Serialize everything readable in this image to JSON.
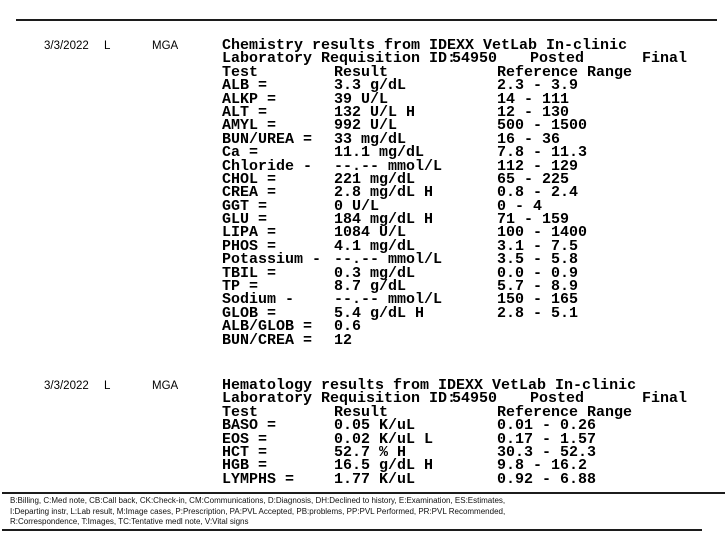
{
  "sections": [
    {
      "date": "3/3/2022",
      "entry_type": "L",
      "provider": "MGA",
      "title": "Chemistry results from IDEXX VetLab In-clinic",
      "requisition_label": "Laboratory Requisition ID:",
      "requisition_id": "54950",
      "status": "Posted",
      "finality": "Final",
      "columns": {
        "test": "Test",
        "result": "Result",
        "range": "Reference Range"
      },
      "rows": [
        {
          "test": "ALB =",
          "result": "3.3 g/dL",
          "range": "2.3 - 3.9"
        },
        {
          "test": "ALKP =",
          "result": "39 U/L",
          "range": "14 - 111"
        },
        {
          "test": "ALT =",
          "result": "132 U/L H",
          "range": "12 - 130"
        },
        {
          "test": "AMYL =",
          "result": "992 U/L",
          "range": "500 - 1500"
        },
        {
          "test": "BUN/UREA =",
          "result": "33 mg/dL",
          "range": "16 - 36"
        },
        {
          "test": "Ca =",
          "result": "11.1 mg/dL",
          "range": "7.8 - 11.3"
        },
        {
          "test": "Chloride -",
          "result": "--.-- mmol/L",
          "range": "112 - 129"
        },
        {
          "test": "CHOL =",
          "result": "221 mg/dL",
          "range": "65 - 225"
        },
        {
          "test": "CREA =",
          "result": "2.8 mg/dL H",
          "range": "0.8 - 2.4"
        },
        {
          "test": "GGT =",
          "result": "0 U/L",
          "range": "0 - 4"
        },
        {
          "test": "GLU =",
          "result": "184 mg/dL H",
          "range": "71 - 159"
        },
        {
          "test": "LIPA =",
          "result": "1084 U/L",
          "range": "100 - 1400"
        },
        {
          "test": "PHOS =",
          "result": "4.1 mg/dL",
          "range": "3.1 - 7.5"
        },
        {
          "test": "Potassium -",
          "result": "--.-- mmol/L",
          "range": "3.5 - 5.8"
        },
        {
          "test": "TBIL =",
          "result": "0.3 mg/dL",
          "range": "0.0 - 0.9"
        },
        {
          "test": "TP =",
          "result": "8.7 g/dL",
          "range": "5.7 - 8.9"
        },
        {
          "test": "Sodium -",
          "result": "--.-- mmol/L",
          "range": "150 - 165"
        },
        {
          "test": "GLOB =",
          "result": "5.4 g/dL H",
          "range": "2.8 - 5.1"
        },
        {
          "test": "ALB/GLOB =",
          "result": "0.6",
          "range": ""
        },
        {
          "test": "BUN/CREA =",
          "result": "12",
          "range": ""
        }
      ]
    },
    {
      "date": "3/3/2022",
      "entry_type": "L",
      "provider": "MGA",
      "title": "Hematology results from IDEXX VetLab In-clinic",
      "requisition_label": "Laboratory Requisition ID:",
      "requisition_id": "54950",
      "status": "Posted",
      "finality": "Final",
      "columns": {
        "test": "Test",
        "result": "Result",
        "range": "Reference Range"
      },
      "rows": [
        {
          "test": "BASO =",
          "result": "0.05 K/uL",
          "range": "0.01 - 0.26"
        },
        {
          "test": "EOS =",
          "result": "0.02 K/uL L",
          "range": "0.17 - 1.57"
        },
        {
          "test": "HCT =",
          "result": "52.7 % H",
          "range": "30.3 - 52.3"
        },
        {
          "test": "HGB =",
          "result": "16.5 g/dL H",
          "range": "9.8 - 16.2"
        },
        {
          "test": "LYMPHS =",
          "result": "1.77 K/uL",
          "range": "0.92 - 6.88"
        }
      ]
    }
  ],
  "footer": {
    "legend": [
      "B:Billing, C:Med note, CB:Call back, CK:Check-in, CM:Communications, D:Diagnosis, DH:Declined to history, E:Examination, ES:Estimates,",
      "I:Departing instr, L:Lab result, M:Image cases, P:Prescription, PA:PVL Accepted, PB:problems, PP:PVL Performed, PR:PVL Recommended,",
      "R:Correspondence, T:Images, TC:Tentative medl note, V:Vital signs"
    ]
  }
}
